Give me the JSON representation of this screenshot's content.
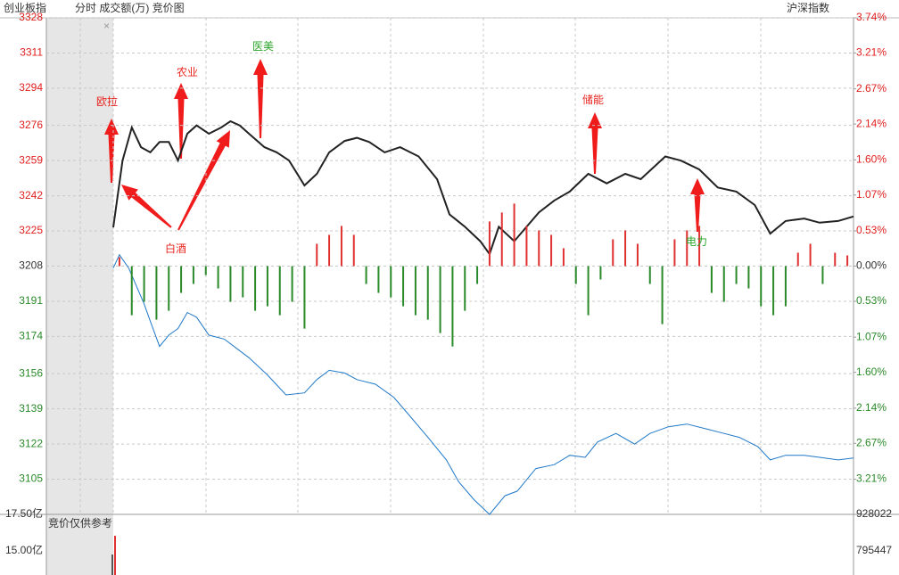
{
  "header": {
    "title": "创业板指",
    "modes": "分时 成交额(万) 竞价图",
    "compare": "沪深指数"
  },
  "chart_data": {
    "type": "line",
    "xlim": [
      0,
      240
    ],
    "ylim": [
      3088,
      3328
    ],
    "yticks": [
      3328,
      3311,
      3294,
      3276,
      3259,
      3242,
      3225,
      3208,
      3191,
      3174,
      3156,
      3139,
      3122,
      3105
    ],
    "y2lim": [
      -3.74,
      3.74
    ],
    "y2ticks": [
      {
        "value": 3.74,
        "label": "3.74%"
      },
      {
        "value": 3.21,
        "label": "3.21%"
      },
      {
        "value": 2.67,
        "label": "2.67%"
      },
      {
        "value": 2.14,
        "label": "2.14%"
      },
      {
        "value": 1.6,
        "label": "1.60%"
      },
      {
        "value": 1.07,
        "label": "1.07%"
      },
      {
        "value": 0.53,
        "label": "0.53%"
      },
      {
        "value": 0,
        "label": "0.00%"
      },
      {
        "value": -0.53,
        "label": "0.53%"
      },
      {
        "value": -1.07,
        "label": "1.07%"
      },
      {
        "value": -1.6,
        "label": "1.60%"
      },
      {
        "value": -2.14,
        "label": "2.14%"
      },
      {
        "value": -2.67,
        "label": "2.67%"
      },
      {
        "value": -3.21,
        "label": "3.21%"
      }
    ],
    "y3lim": [
      -278,
      278
    ],
    "series": [
      {
        "name": "创业板指",
        "color": "#222222",
        "x": [
          0,
          3,
          6,
          9,
          12,
          15,
          18,
          21,
          24,
          27,
          31,
          35,
          38,
          41,
          44,
          49,
          53,
          57,
          62,
          66,
          70,
          75,
          79,
          83,
          88,
          93,
          99,
          105,
          109,
          114,
          119,
          122,
          125,
          130,
          134,
          138,
          143,
          148,
          154,
          160,
          166,
          171,
          179,
          184,
          190,
          196,
          202,
          208,
          213,
          218,
          224,
          229,
          235,
          240
        ],
        "values": [
          3226.7,
          3259,
          3275,
          3265.5,
          3263,
          3268,
          3268,
          3259,
          3272,
          3276,
          3272,
          3275,
          3278,
          3276,
          3272,
          3265.5,
          3263,
          3259,
          3247,
          3252.6,
          3263,
          3268.5,
          3270,
          3268,
          3263,
          3265.5,
          3261,
          3250,
          3233,
          3227,
          3220,
          3213.8,
          3227,
          3220,
          3227,
          3234,
          3239.7,
          3244,
          3252.6,
          3248,
          3252.6,
          3250,
          3261,
          3259,
          3254.7,
          3246,
          3244,
          3237.5,
          3223.7,
          3229.8,
          3231,
          3229,
          3229.8,
          3232
        ]
      },
      {
        "name": "沪深指数",
        "color": "#1f78c8",
        "axis": "y2",
        "x": [
          0,
          2,
          5,
          10,
          12,
          15,
          18,
          21,
          24,
          27,
          31,
          36,
          40,
          44,
          50,
          56,
          62,
          66,
          70,
          75,
          79,
          85,
          91,
          96,
          102,
          108,
          112,
          117,
          122,
          127,
          131,
          137,
          143,
          148,
          153,
          157,
          163,
          169,
          174,
          180,
          186,
          192,
          198,
          203,
          209,
          213,
          218,
          224,
          229,
          235,
          240
        ],
        "values": [
          -0.03,
          0.17,
          -0.03,
          -0.57,
          -0.83,
          -1.21,
          -1.04,
          -0.94,
          -0.7,
          -0.77,
          -1.04,
          -1.1,
          -1.24,
          -1.38,
          -1.64,
          -1.94,
          -1.91,
          -1.71,
          -1.57,
          -1.61,
          -1.71,
          -1.78,
          -1.98,
          -2.25,
          -2.58,
          -2.92,
          -3.25,
          -3.52,
          -3.74,
          -3.46,
          -3.39,
          -3.05,
          -2.99,
          -2.85,
          -2.88,
          -2.65,
          -2.52,
          -2.68,
          -2.52,
          -2.42,
          -2.38,
          -2.45,
          -2.52,
          -2.58,
          -2.72,
          -2.92,
          -2.85,
          -2.85,
          -2.88,
          -2.92,
          -2.89
        ]
      },
      {
        "name": "成交额",
        "type": "bar",
        "axis": "y3",
        "up_color": "#e03030",
        "down_color": "#2a8a2a",
        "x": [
          2,
          6,
          10,
          14,
          18,
          22,
          26,
          30,
          34,
          38,
          42,
          46,
          50,
          54,
          58,
          62,
          66,
          70,
          74,
          78,
          82,
          86,
          90,
          94,
          98,
          102,
          106,
          110,
          114,
          118,
          122,
          126,
          130,
          134,
          138,
          142,
          146,
          150,
          154,
          158,
          162,
          166,
          170,
          174,
          178,
          182,
          186,
          190,
          194,
          198,
          202,
          206,
          210,
          214,
          218,
          222,
          226,
          230,
          234,
          238
        ],
        "values": [
          10,
          -55,
          -40,
          -60,
          -50,
          -30,
          -20,
          -10,
          -25,
          -40,
          -35,
          -50,
          -45,
          -55,
          -40,
          -70,
          25,
          35,
          45,
          35,
          -20,
          -30,
          -35,
          -45,
          -55,
          -60,
          -75,
          -90,
          -50,
          -20,
          50,
          60,
          70,
          45,
          40,
          35,
          20,
          -20,
          -55,
          -15,
          30,
          40,
          25,
          -20,
          -65,
          30,
          40,
          45,
          -30,
          -40,
          -20,
          -25,
          -45,
          -55,
          -45,
          15,
          25,
          -20,
          15,
          12
        ]
      }
    ],
    "annotations": [
      {
        "text": "欧拉",
        "color": "#e8261f"
      },
      {
        "text": "农业",
        "color": "#e8261f"
      },
      {
        "text": "医美",
        "color": "#2aa52a"
      },
      {
        "text": "白酒",
        "color": "#e8261f"
      },
      {
        "text": "储能",
        "color": "#e8261f"
      },
      {
        "text": "电力",
        "color": "#2aa52a"
      }
    ]
  },
  "lower_panel": {
    "left_top": "17.50亿",
    "left_bottom": "15.00亿",
    "note": "竞价仅供参考",
    "right_top": "928022",
    "right_bottom": "795447"
  }
}
